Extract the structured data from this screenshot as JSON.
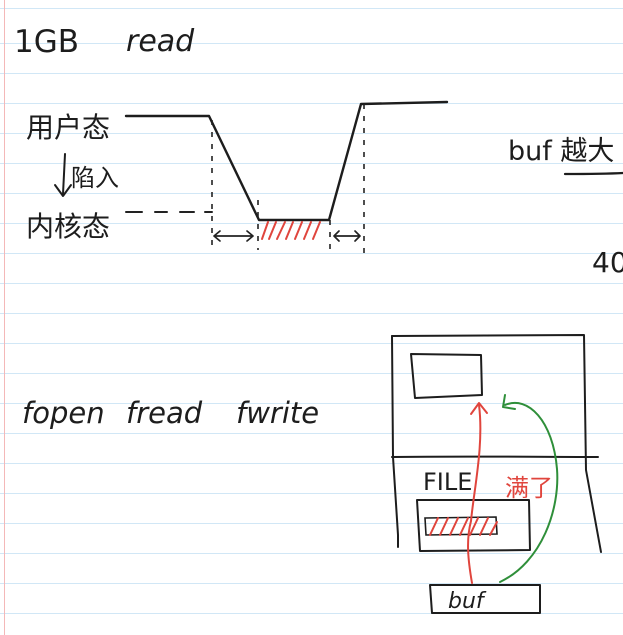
{
  "note": {
    "top": {
      "size": "1GB",
      "operation": "read"
    },
    "states": {
      "user": "用户态",
      "trap": "陷入",
      "kernel": "内核态"
    },
    "right_side": {
      "buf_text": "buf 越大",
      "page_size_hint": "40"
    },
    "io_funcs": {
      "fopen": "fopen",
      "fread": "fread",
      "fwrite": "fwrite"
    },
    "diagram": {
      "file_label": "FILE",
      "full_label": "满了",
      "buf_label": "buf"
    }
  },
  "colors": {
    "ink": "#1d1d1d",
    "accent_red": "#e0453d",
    "accent_green": "#2f8f3a",
    "ruled_line": "#cfe6f6",
    "margin": "#f4b8b8"
  }
}
